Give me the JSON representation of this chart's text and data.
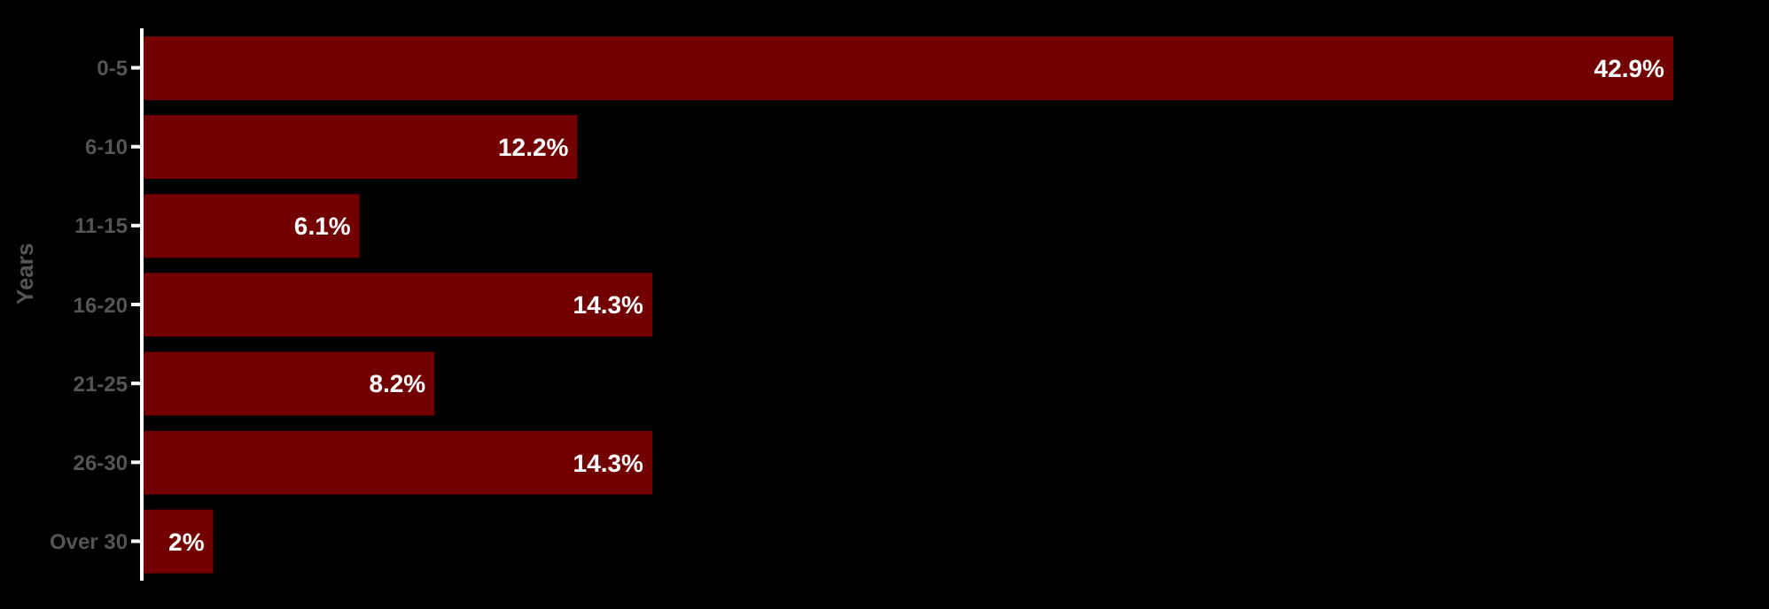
{
  "chart_data": {
    "type": "bar",
    "orientation": "horizontal",
    "ylabel": "Years",
    "categories": [
      "0-5",
      "6-10",
      "11-15",
      "16-20",
      "21-25",
      "26-30",
      "Over 30"
    ],
    "values": [
      42.9,
      12.2,
      6.1,
      14.3,
      8.2,
      14.3,
      2
    ],
    "value_labels": [
      "42.9%",
      "12.2%",
      "6.1%",
      "14.3%",
      "8.2%",
      "14.3%",
      "2%"
    ],
    "color": "#720000",
    "tick_labels": "y"
  }
}
